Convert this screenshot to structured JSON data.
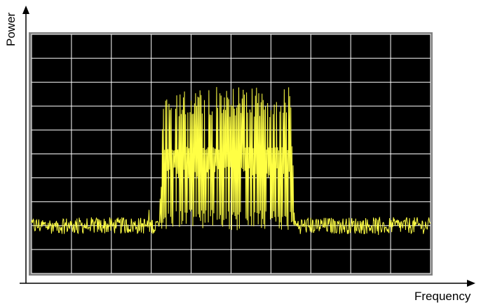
{
  "chart_data": {
    "type": "line",
    "xlabel": "Frequency",
    "ylabel": "Power",
    "grid": true,
    "grid_divisions": {
      "x": 10,
      "y": 10
    },
    "xlim": [
      0,
      10
    ],
    "ylim": [
      0,
      10
    ],
    "series": [
      {
        "trace_model": {
          "noise_floor": 2.0,
          "noise_amplitude": 0.35,
          "band_start": 3.2,
          "band_end": 6.6,
          "band_peak": 7.8,
          "band_mid": 4.5,
          "sample_count": 720
        }
      }
    ]
  },
  "colors": {
    "plot_background": "#000000",
    "grid": "#ffffff",
    "trace": "#ffff44",
    "frame_outer": "#7f7f7f",
    "axes": "#000000"
  }
}
